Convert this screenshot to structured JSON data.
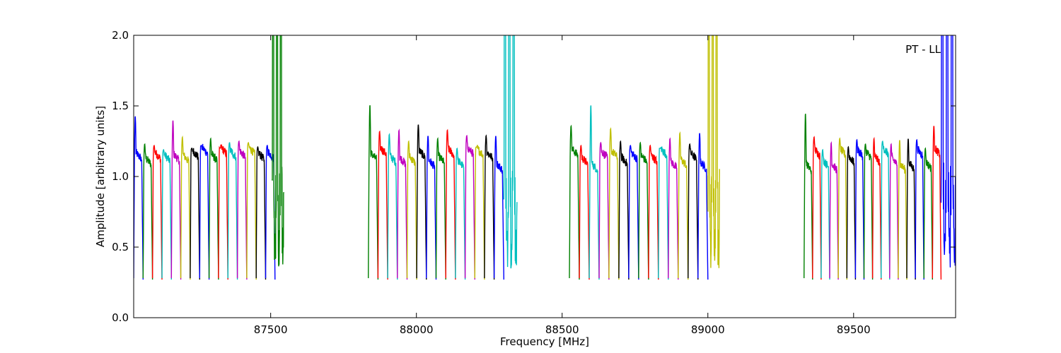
{
  "chart_data": {
    "type": "line",
    "xlabel": "Frequency [MHz]",
    "ylabel": "Amplitude [arbitrary units]",
    "annotation": "PT - LL",
    "annotation_position": "top-right",
    "xlim": [
      87030,
      89850
    ],
    "ylim": [
      0.0,
      2.0
    ],
    "x_ticks": [
      87500,
      88000,
      88500,
      89000,
      89500
    ],
    "x_tick_labels": [
      "87500",
      "88000",
      "88500",
      "89000",
      "89500"
    ],
    "y_ticks": [
      0.0,
      0.5,
      1.0,
      1.5,
      2.0
    ],
    "y_tick_labels": [
      "0.0",
      "0.5",
      "1.0",
      "1.5",
      "2.0"
    ],
    "grid": false,
    "legend": "none",
    "colors": [
      "#0000ff",
      "#008000",
      "#ff0000",
      "#00bfbf",
      "#bf00bf",
      "#bfbf00",
      "#000000"
    ],
    "bands": [
      {
        "start": 87030,
        "end": 87515,
        "interference_start": 87505,
        "interference_end": 87545,
        "peaks": [
          1.43,
          1.23,
          1.22,
          1.19,
          1.4,
          1.28,
          1.2,
          1.22,
          1.27,
          1.2,
          1.24,
          1.25,
          1.24,
          1.21,
          1.22
        ]
      },
      {
        "start": 87835,
        "end": 88300,
        "interference_start": 88300,
        "interference_end": 88345,
        "peaks": [
          1.51,
          1.32,
          1.3,
          1.33,
          1.25,
          1.37,
          1.29,
          1.27,
          1.33,
          1.2,
          1.29,
          1.21,
          1.29,
          1.29
        ]
      },
      {
        "start": 88525,
        "end": 89000,
        "interference_start": 89000,
        "interference_end": 89040,
        "peaks": [
          1.36,
          1.22,
          1.51,
          1.24,
          1.34,
          1.25,
          1.22,
          1.24,
          1.22,
          1.2,
          1.27,
          1.31,
          1.23,
          1.31
        ]
      },
      {
        "start": 89330,
        "end": 89800,
        "interference_start": 89800,
        "interference_end": 89850,
        "peaks": [
          1.45,
          1.28,
          1.19,
          1.24,
          1.27,
          1.21,
          1.26,
          1.23,
          1.27,
          1.25,
          1.23,
          1.26,
          1.27,
          1.26,
          1.2,
          1.36
        ]
      }
    ]
  }
}
